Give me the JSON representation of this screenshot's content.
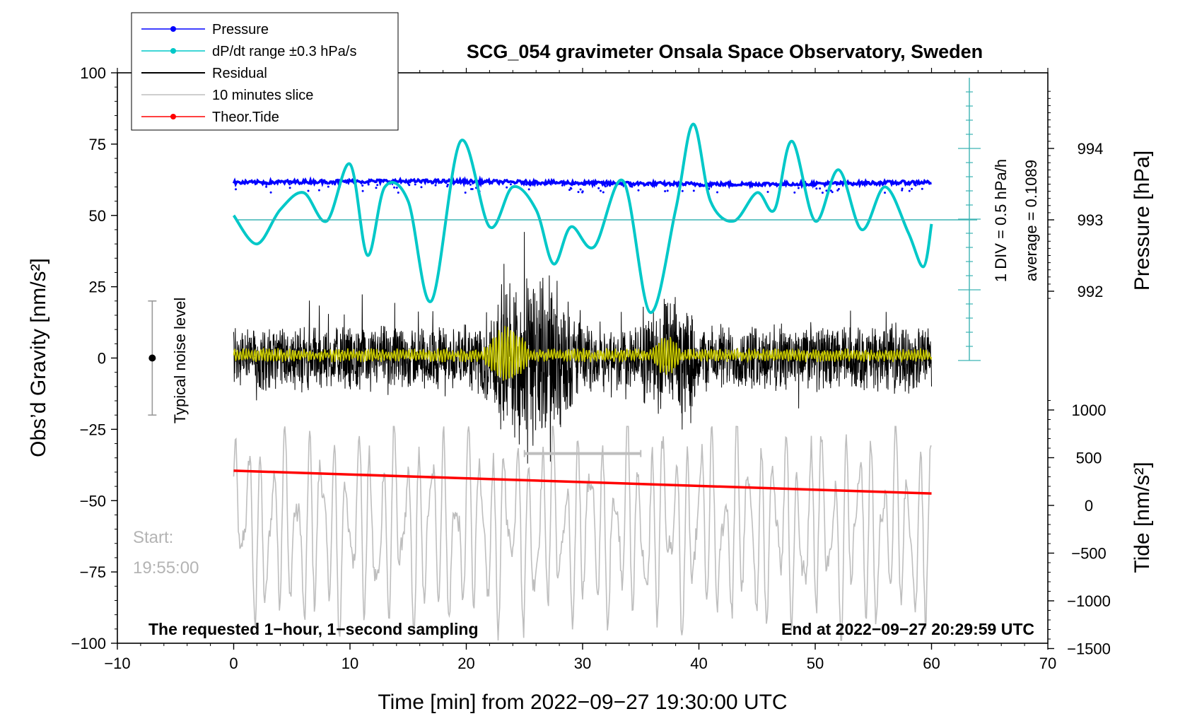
{
  "chart_data": {
    "type": "line",
    "title": "SCG_054 gravimeter Onsala Space Observatory, Sweden",
    "xlabel": "Time [min] from 2022−09−27 19:30:00 UTC",
    "ylabel_left": "Obs’d Gravity [nm/s²]",
    "ylabel_right_pressure": "Pressure [hPa]",
    "ylabel_right_tide": "Tide [nm/s²]",
    "xlim": [
      -10,
      70
    ],
    "ylim": [
      -100,
      100
    ],
    "xticks": [
      -10,
      0,
      10,
      20,
      30,
      40,
      50,
      60,
      70
    ],
    "xtick_labels": [
      "−10",
      "0",
      "10",
      "20",
      "30",
      "40",
      "50",
      "60",
      "70"
    ],
    "yticks": [
      -100,
      -75,
      -50,
      -25,
      0,
      25,
      50,
      75,
      100
    ],
    "ytick_labels": [
      "−100",
      "−75",
      "−50",
      "−25",
      "0",
      "25",
      "50",
      "75",
      "100"
    ],
    "pressure_ticks": [
      992,
      993,
      994
    ],
    "pressure_tick_labels": [
      "992",
      "993",
      "994"
    ],
    "tide_ticks": [
      -1500,
      -1000,
      -500,
      0,
      500,
      1000
    ],
    "tide_tick_labels": [
      "−1500",
      "−1000",
      "−500",
      "0",
      "500",
      "1000"
    ],
    "legend": [
      {
        "label": "Pressure",
        "color": "#0000ff"
      },
      {
        "label": "dP/dt range ±0.3 hPa/s",
        "color": "#00c8c8"
      },
      {
        "label": "Residual",
        "color": "#000000"
      },
      {
        "label": "10 minutes slice",
        "color": "#bebebe"
      },
      {
        "label": "Theor.Tide",
        "color": "#ff0000"
      }
    ],
    "series": [
      {
        "name": "Pressure",
        "unit": "hPa",
        "approx_level": 993.5,
        "x_range": [
          0,
          60
        ]
      },
      {
        "name": "dP/dt",
        "x": [
          0,
          2,
          4,
          6,
          8,
          10,
          11.5,
          13,
          15,
          17,
          19.5,
          22,
          24,
          26,
          27.5,
          29,
          31,
          33.5,
          35.8,
          38,
          39.5,
          41,
          43,
          45,
          46.5,
          48,
          50,
          52,
          54,
          56,
          58,
          59.3,
          60
        ],
        "values": [
          50,
          40,
          52,
          58,
          48,
          68,
          36,
          60,
          55,
          20,
          76,
          46,
          60,
          52,
          33,
          46,
          39,
          62,
          16,
          52,
          82,
          55,
          48,
          58,
          52,
          76,
          48,
          66,
          45,
          60,
          44,
          32,
          47
        ]
      },
      {
        "name": "Residual",
        "approx_range": [
          -37,
          51
        ],
        "x_range": [
          0,
          60
        ]
      },
      {
        "name": "Residual (low-pass)",
        "color": "#c8c800",
        "approx_range": [
          -10,
          10
        ]
      },
      {
        "name": "10 minutes slice",
        "x_range": [
          0,
          60
        ],
        "approx_range": [
          -95,
          -25
        ]
      },
      {
        "name": "Theor.Tide",
        "x": [
          0,
          60
        ],
        "values": [
          -39.5,
          -47.5
        ]
      }
    ],
    "annotations": {
      "noise_label": "Typical noise level",
      "noise_range": [
        -20,
        20
      ],
      "div_label": "1 DIV = 0.5 hPa/h",
      "average_label": "average = 0.1089",
      "start_label": "Start:",
      "start_time": "19:55:00",
      "slice_range": [
        25,
        35
      ],
      "slice_level": -33.5,
      "bottom_left": "The requested 1−hour, 1−second sampling",
      "bottom_right": "End at 2022−09−27 20:29:59 UTC"
    },
    "colors": {
      "pressure": "#0000ff",
      "dpdt": "#00c8c8",
      "dpdt_axis": "#3cb4b4",
      "residual": "#000000",
      "lowpass": "#c8c800",
      "slice": "#bebebe",
      "tide": "#ff0000"
    }
  }
}
